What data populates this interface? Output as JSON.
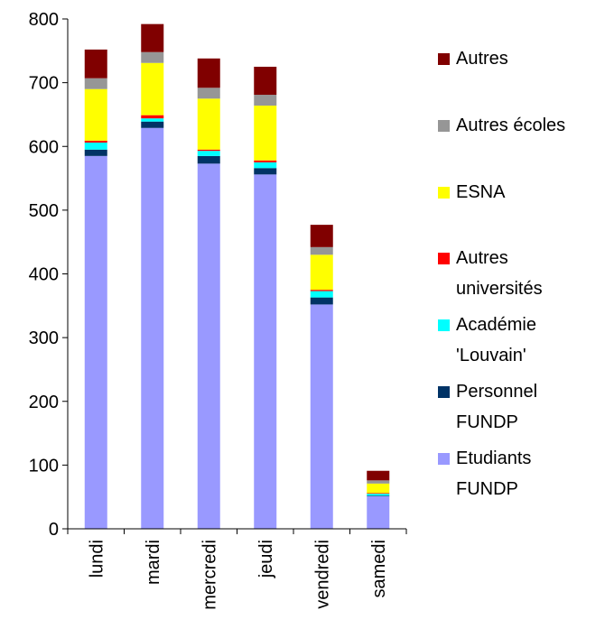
{
  "chart_data": {
    "type": "stacked_bar",
    "categories": [
      "lundi",
      "mardi",
      "mercredi",
      "jeudi",
      "vendredi",
      "samedi"
    ],
    "series": [
      {
        "name": "Etudiants FUNDP",
        "color": "#9999ff",
        "values": [
          585,
          629,
          573,
          556,
          352,
          51
        ]
      },
      {
        "name": "Personnel FUNDP",
        "color": "#003366",
        "values": [
          10,
          10,
          12,
          10,
          11,
          1
        ]
      },
      {
        "name": "Académie 'Louvain'",
        "color": "#00ffff",
        "values": [
          11,
          5,
          8,
          9,
          10,
          3
        ]
      },
      {
        "name": "Autres universités",
        "color": "#ff0000",
        "values": [
          3,
          5,
          2,
          3,
          2,
          1
        ]
      },
      {
        "name": "ESNA",
        "color": "#ffff00",
        "values": [
          81,
          82,
          80,
          86,
          55,
          15
        ]
      },
      {
        "name": "Autres écoles",
        "color": "#969696",
        "values": [
          17,
          17,
          17,
          17,
          12,
          5
        ]
      },
      {
        "name": "Autres",
        "color": "#800000",
        "values": [
          45,
          44,
          46,
          44,
          35,
          15
        ]
      }
    ],
    "ylim": [
      0,
      800
    ],
    "yticks": [
      0,
      100,
      200,
      300,
      400,
      500,
      600,
      700,
      800
    ],
    "legend": "right"
  }
}
